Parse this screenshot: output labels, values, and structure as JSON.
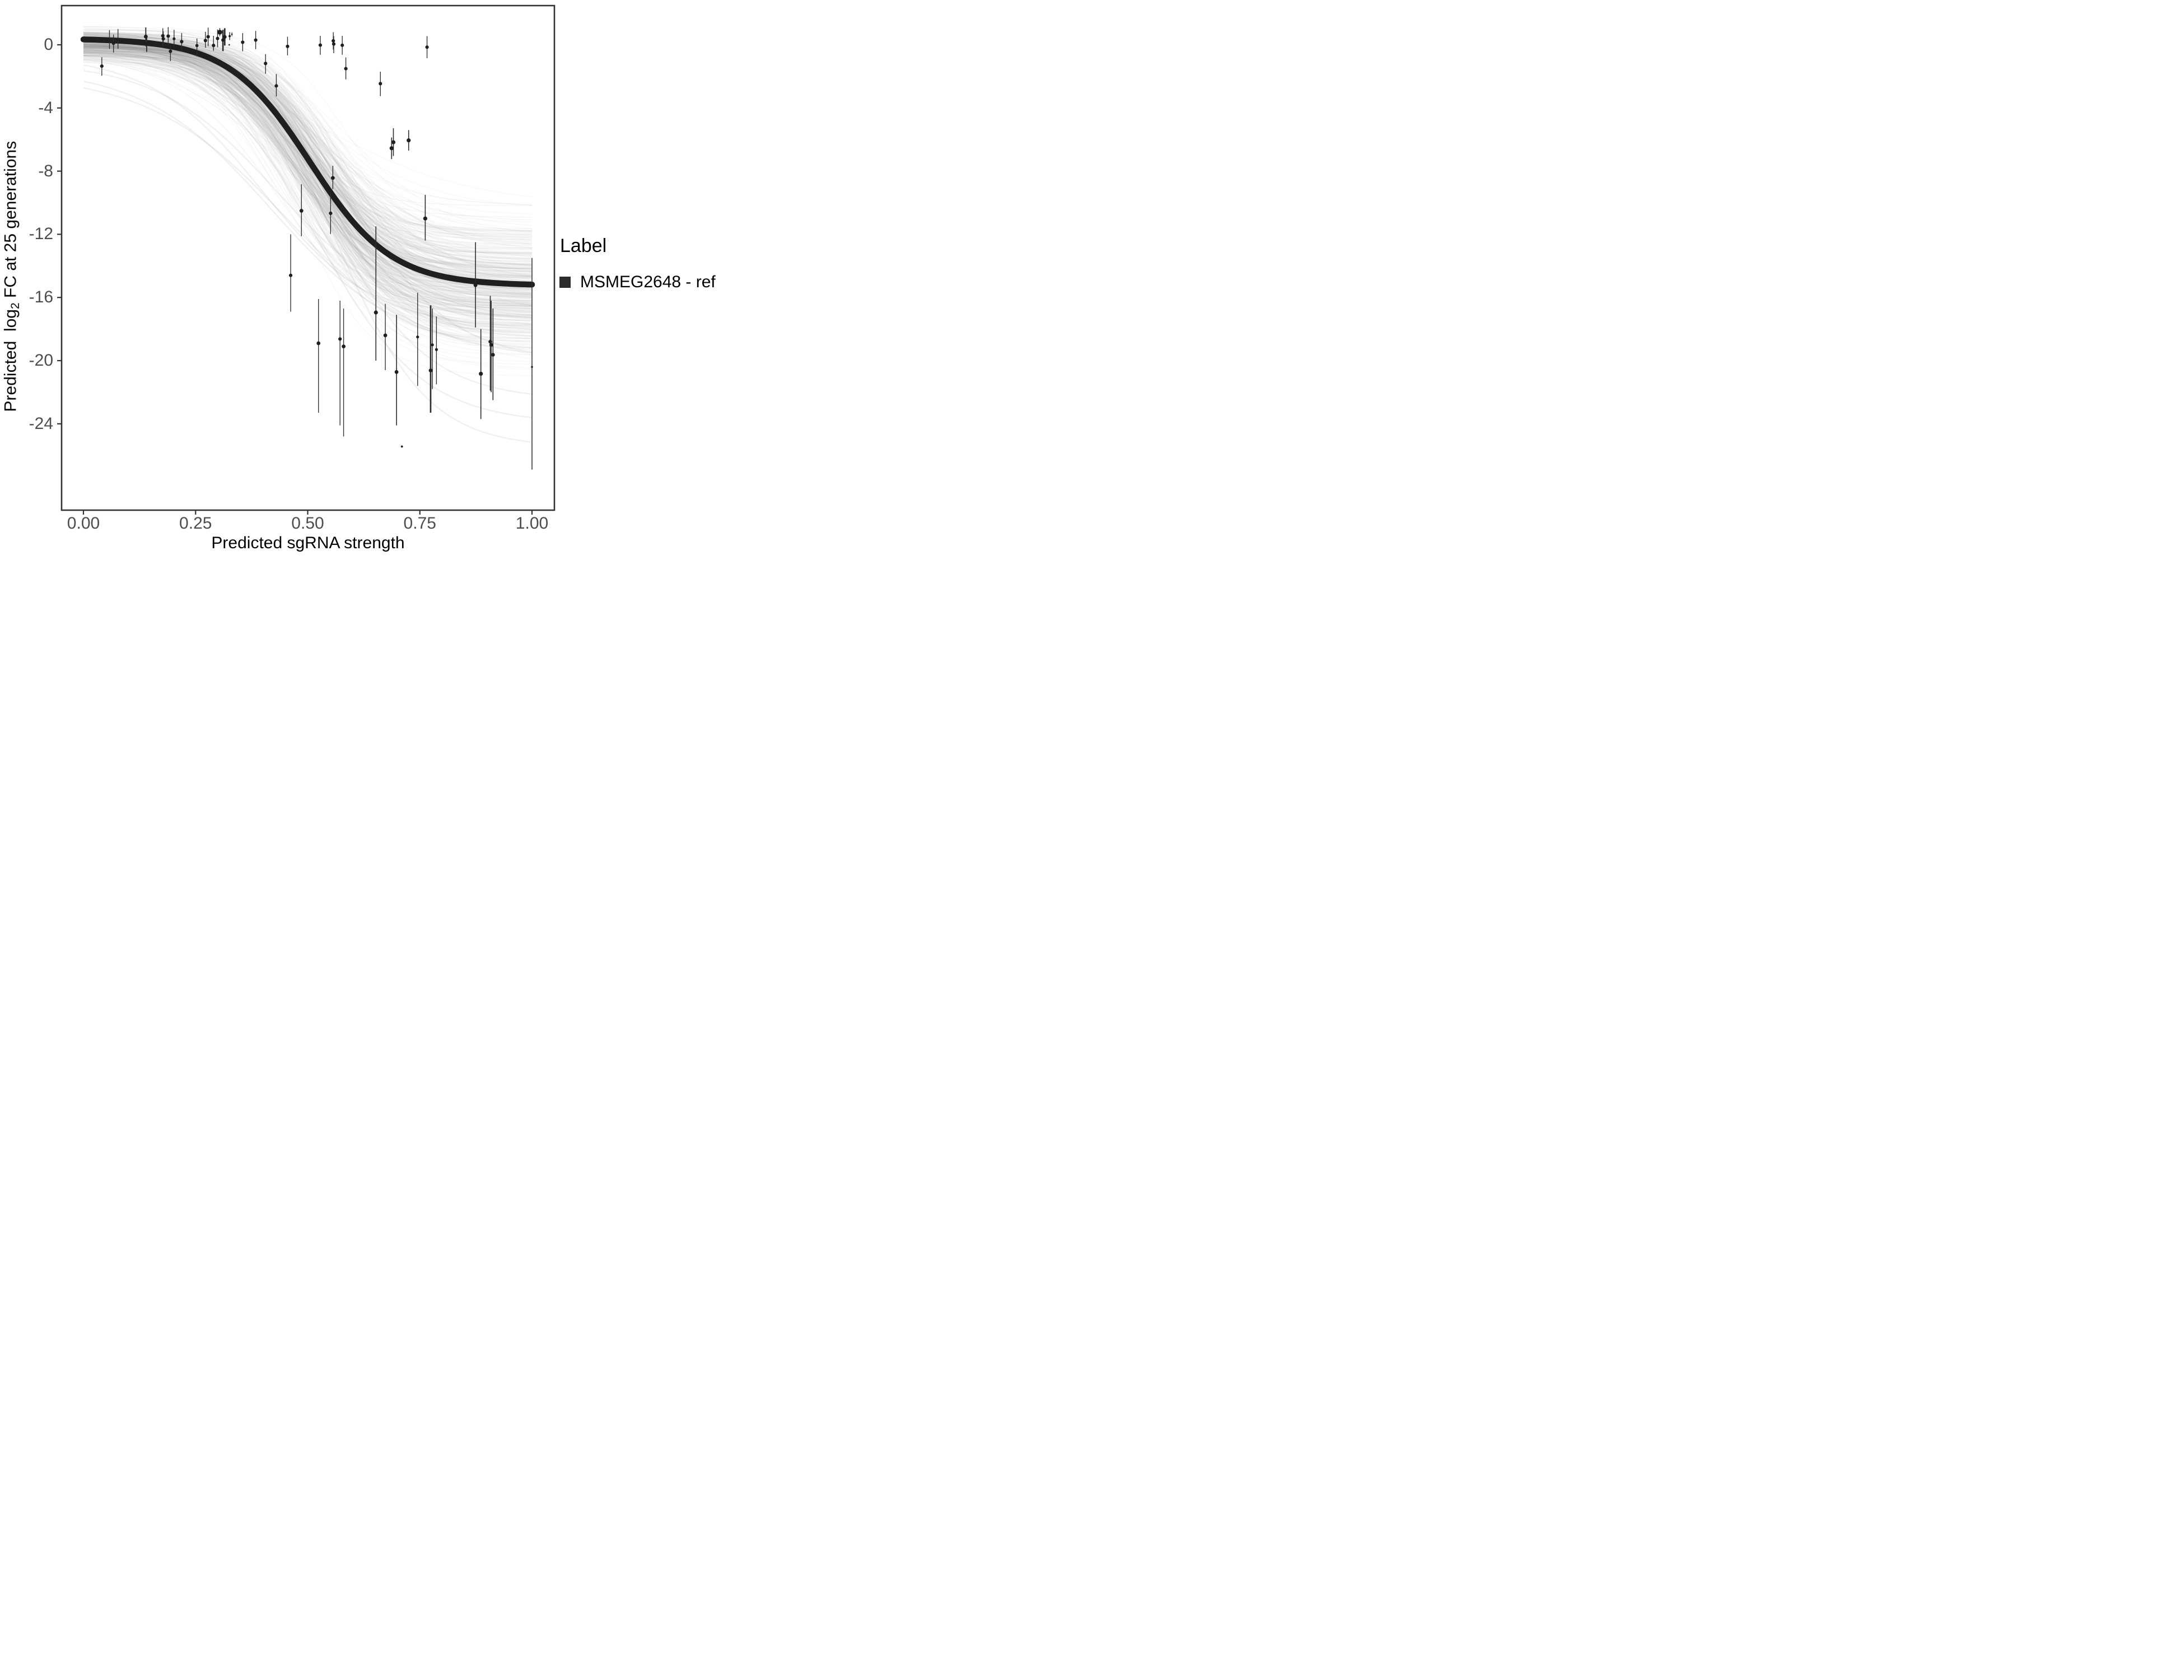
{
  "chart_data": {
    "type": "scatter",
    "title": "",
    "xlabel": "Predicted sgRNA strength",
    "ylabel_prefix": "Predicted  log",
    "ylabel_sub": "2",
    "ylabel_suffix": " FC at 25 generations",
    "xlim": [
      0,
      1
    ],
    "ylim_display": [
      -29.5,
      2.5
    ],
    "grid": false,
    "x_ticks": [
      {
        "value": 0.0,
        "label": "0.00"
      },
      {
        "value": 0.25,
        "label": "0.25"
      },
      {
        "value": 0.5,
        "label": "0.50"
      },
      {
        "value": 0.75,
        "label": "0.75"
      },
      {
        "value": 1.0,
        "label": "1.00"
      }
    ],
    "y_ticks": [
      {
        "value": 0,
        "label": "0"
      },
      {
        "value": -4,
        "label": "-4"
      },
      {
        "value": -8,
        "label": "-8"
      },
      {
        "value": -12,
        "label": "-12"
      },
      {
        "value": -16,
        "label": "-16"
      },
      {
        "value": -20,
        "label": "-20"
      },
      {
        "value": -24,
        "label": "-24"
      }
    ],
    "legend": {
      "title": "Label",
      "position": "right",
      "items": [
        {
          "label": "MSMEG2648 - ref",
          "swatch_color": "#2b2b2b"
        }
      ]
    },
    "fit_curve": {
      "type": "logistic",
      "upper_asymptote": 0.4,
      "lower_asymptote": -15.25,
      "midpoint": 0.505,
      "steepness": 11,
      "color": "#1f1f1f",
      "line_width": 10.5
    },
    "posterior_band": {
      "description": "ensemble of posterior logistic draws (thin gray lines)",
      "n_curves": 330,
      "n_texture_curves": 80,
      "upper_asymptote": {
        "mean": 0.1,
        "sd": 0.45,
        "min": -1.8,
        "max": 1.2
      },
      "lower_asymptote": {
        "mean": -15.3,
        "sd": 2.1,
        "min": -21.0,
        "max": -10.2
      },
      "midpoint": {
        "mean": 0.508,
        "sd": 0.034,
        "min": 0.4,
        "max": 0.63
      },
      "steepness": {
        "mean": 11.2,
        "sd": 1.9,
        "min": 6.0,
        "max": 17.0
      },
      "color": "#8c8c8c",
      "opacity": 0.045,
      "end_spread_at_x1": [
        -10.5,
        -20.5
      ]
    },
    "outlier_draws": [
      {
        "top": -1.0,
        "bottom": -17.5,
        "midpoint": 0.43,
        "steepness": 7.5
      },
      {
        "top": -1.4,
        "bottom": -19.5,
        "midpoint": 0.42,
        "steepness": 7.0
      },
      {
        "top": -0.6,
        "bottom": -18.0,
        "midpoint": 0.4,
        "steepness": 8.0
      },
      {
        "top": -1.8,
        "bottom": -20.0,
        "midpoint": 0.45,
        "steepness": 6.5
      },
      {
        "top": -0.3,
        "bottom": -22.5,
        "midpoint": 0.55,
        "steepness": 9.0
      },
      {
        "top": -0.2,
        "bottom": -25.5,
        "midpoint": 0.57,
        "steepness": 10.0
      },
      {
        "top": -0.4,
        "bottom": -24.0,
        "midpoint": 0.52,
        "steepness": 8.5
      },
      {
        "top": 0.1,
        "bottom": -20.0,
        "midpoint": 0.6,
        "steepness": 9.0
      }
    ],
    "points_format": "[x, y, ci_high, ci_low, dot_radius_px, bar_width_px]",
    "points": [
      [
        0.041,
        -1.35,
        -0.78,
        -1.96,
        3.1,
        1.35
      ],
      [
        0.058,
        0.3,
        0.93,
        -0.26,
        2.6,
        1.35
      ],
      [
        0.067,
        0.1,
        0.65,
        -0.49,
        3.1,
        1.35
      ],
      [
        0.077,
        0.35,
        1.0,
        -0.25,
        2.6,
        1.35
      ],
      [
        0.139,
        0.52,
        1.1,
        -0.1,
        3.4,
        1.9
      ],
      [
        0.141,
        0.08,
        0.6,
        -0.45,
        3.1,
        1.9
      ],
      [
        0.177,
        0.57,
        1.05,
        -0.02,
        3.1,
        1.35
      ],
      [
        0.178,
        0.38,
        0.85,
        -0.12,
        3.1,
        1.35
      ],
      [
        0.189,
        0.55,
        1.12,
        -0.06,
        3.1,
        1.35
      ],
      [
        0.194,
        -0.41,
        0.0,
        -1.03,
        3.1,
        1.35
      ],
      [
        0.202,
        0.38,
        0.95,
        -0.2,
        2.6,
        1.35
      ],
      [
        0.219,
        0.2,
        0.74,
        -0.39,
        3.1,
        1.35
      ],
      [
        0.253,
        -0.05,
        0.4,
        -0.73,
        2.8,
        1.35
      ],
      [
        0.272,
        0.27,
        0.82,
        -0.19,
        3.1,
        1.35
      ],
      [
        0.278,
        0.51,
        1.09,
        -0.08,
        3.1,
        1.35
      ],
      [
        0.29,
        -0.04,
        0.57,
        -0.38,
        3.1,
        1.35
      ],
      [
        0.299,
        0.4,
        0.97,
        -0.15,
        3.1,
        1.35
      ],
      [
        0.304,
        0.8,
        1.06,
        0.54,
        4.3,
        1.35
      ],
      [
        0.311,
        0.3,
        0.95,
        -0.4,
        3.1,
        2.7
      ],
      [
        0.315,
        0.5,
        1.05,
        -0.05,
        3.3,
        2.7
      ],
      [
        0.326,
        0.55,
        0.8,
        0.3,
        2.0,
        1.35
      ],
      [
        0.331,
        0.67,
        0.8,
        0.54,
        1.3,
        1.0
      ],
      [
        0.325,
        0.0,
        0.04,
        -0.04,
        1.3,
        1.0
      ],
      [
        0.355,
        0.16,
        0.74,
        -0.41,
        3.1,
        1.35
      ],
      [
        0.384,
        0.3,
        0.88,
        -0.28,
        3.1,
        1.35
      ],
      [
        0.406,
        -1.18,
        -0.59,
        -1.83,
        3.1,
        1.35
      ],
      [
        0.43,
        -2.6,
        -1.85,
        -3.27,
        3.1,
        1.35
      ],
      [
        0.455,
        -0.1,
        0.51,
        -0.67,
        3.1,
        1.35
      ],
      [
        0.462,
        -14.6,
        -12.0,
        -16.9,
        3.1,
        1.35
      ],
      [
        0.486,
        -10.51,
        -8.83,
        -12.12,
        3.4,
        1.35
      ],
      [
        0.524,
        -18.9,
        -16.1,
        -23.3,
        3.4,
        1.35
      ],
      [
        0.528,
        -0.02,
        0.57,
        -0.63,
        3.1,
        1.35
      ],
      [
        0.551,
        -10.67,
        -9.37,
        -11.98,
        3.1,
        1.35
      ],
      [
        0.556,
        -8.43,
        -7.66,
        -9.14,
        3.4,
        1.35
      ],
      [
        0.557,
        0.25,
        0.8,
        -0.3,
        3.1,
        1.35
      ],
      [
        0.558,
        0.05,
        0.55,
        -0.53,
        3.1,
        1.35
      ],
      [
        0.572,
        -18.63,
        -16.2,
        -24.1,
        3.1,
        1.35
      ],
      [
        0.577,
        -0.03,
        0.57,
        -0.63,
        3.1,
        1.35
      ],
      [
        0.58,
        -19.1,
        -16.7,
        -24.8,
        3.4,
        1.35
      ],
      [
        0.585,
        -1.51,
        -0.8,
        -2.19,
        3.1,
        1.35
      ],
      [
        0.652,
        -16.95,
        -11.5,
        -20.0,
        3.6,
        1.6
      ],
      [
        0.662,
        -2.46,
        -1.7,
        -3.25,
        3.1,
        1.35
      ],
      [
        0.673,
        -18.4,
        -16.4,
        -20.6,
        3.4,
        1.35
      ],
      [
        0.687,
        -6.55,
        -5.87,
        -7.24,
        3.6,
        1.6
      ],
      [
        0.691,
        -6.17,
        -5.28,
        -7.04,
        3.6,
        1.6
      ],
      [
        0.698,
        -20.72,
        -17.1,
        -24.1,
        3.4,
        1.6
      ],
      [
        0.71,
        -25.44,
        -25.44,
        -25.44,
        1.9,
        0
      ],
      [
        0.725,
        -6.05,
        -5.4,
        -6.7,
        3.6,
        1.6
      ],
      [
        0.745,
        -18.5,
        -15.7,
        -21.6,
        2.6,
        1.35
      ],
      [
        0.762,
        -11.0,
        -9.5,
        -12.4,
        3.6,
        1.6
      ],
      [
        0.766,
        -0.15,
        0.55,
        -0.85,
        3.1,
        1.35
      ],
      [
        0.774,
        -20.62,
        -16.5,
        -23.3,
        3.4,
        2.7
      ],
      [
        0.778,
        -19.0,
        -16.7,
        -21.8,
        2.6,
        1.35
      ],
      [
        0.787,
        -19.3,
        -17.2,
        -21.5,
        2.6,
        1.35
      ],
      [
        0.874,
        -15.22,
        -12.5,
        -17.9,
        3.4,
        1.6
      ],
      [
        0.886,
        -20.83,
        -18.0,
        -23.7,
        3.6,
        1.6
      ],
      [
        0.907,
        -18.8,
        -15.9,
        -21.9,
        3.3,
        1.6
      ],
      [
        0.909,
        -19.0,
        -16.2,
        -22.0,
        3.3,
        1.6
      ],
      [
        0.913,
        -19.63,
        -16.7,
        -22.5,
        3.3,
        1.6
      ],
      [
        1.0,
        -20.4,
        -13.5,
        -26.9,
        1.8,
        1.5
      ]
    ],
    "point_color": "#1f1f1f",
    "errorbar_color": "#2d2d2d"
  },
  "style": {
    "panel_border_color": "#333333",
    "tick_color": "#333333",
    "tick_text_color": "#4d4d4d",
    "background": "#ffffff"
  }
}
